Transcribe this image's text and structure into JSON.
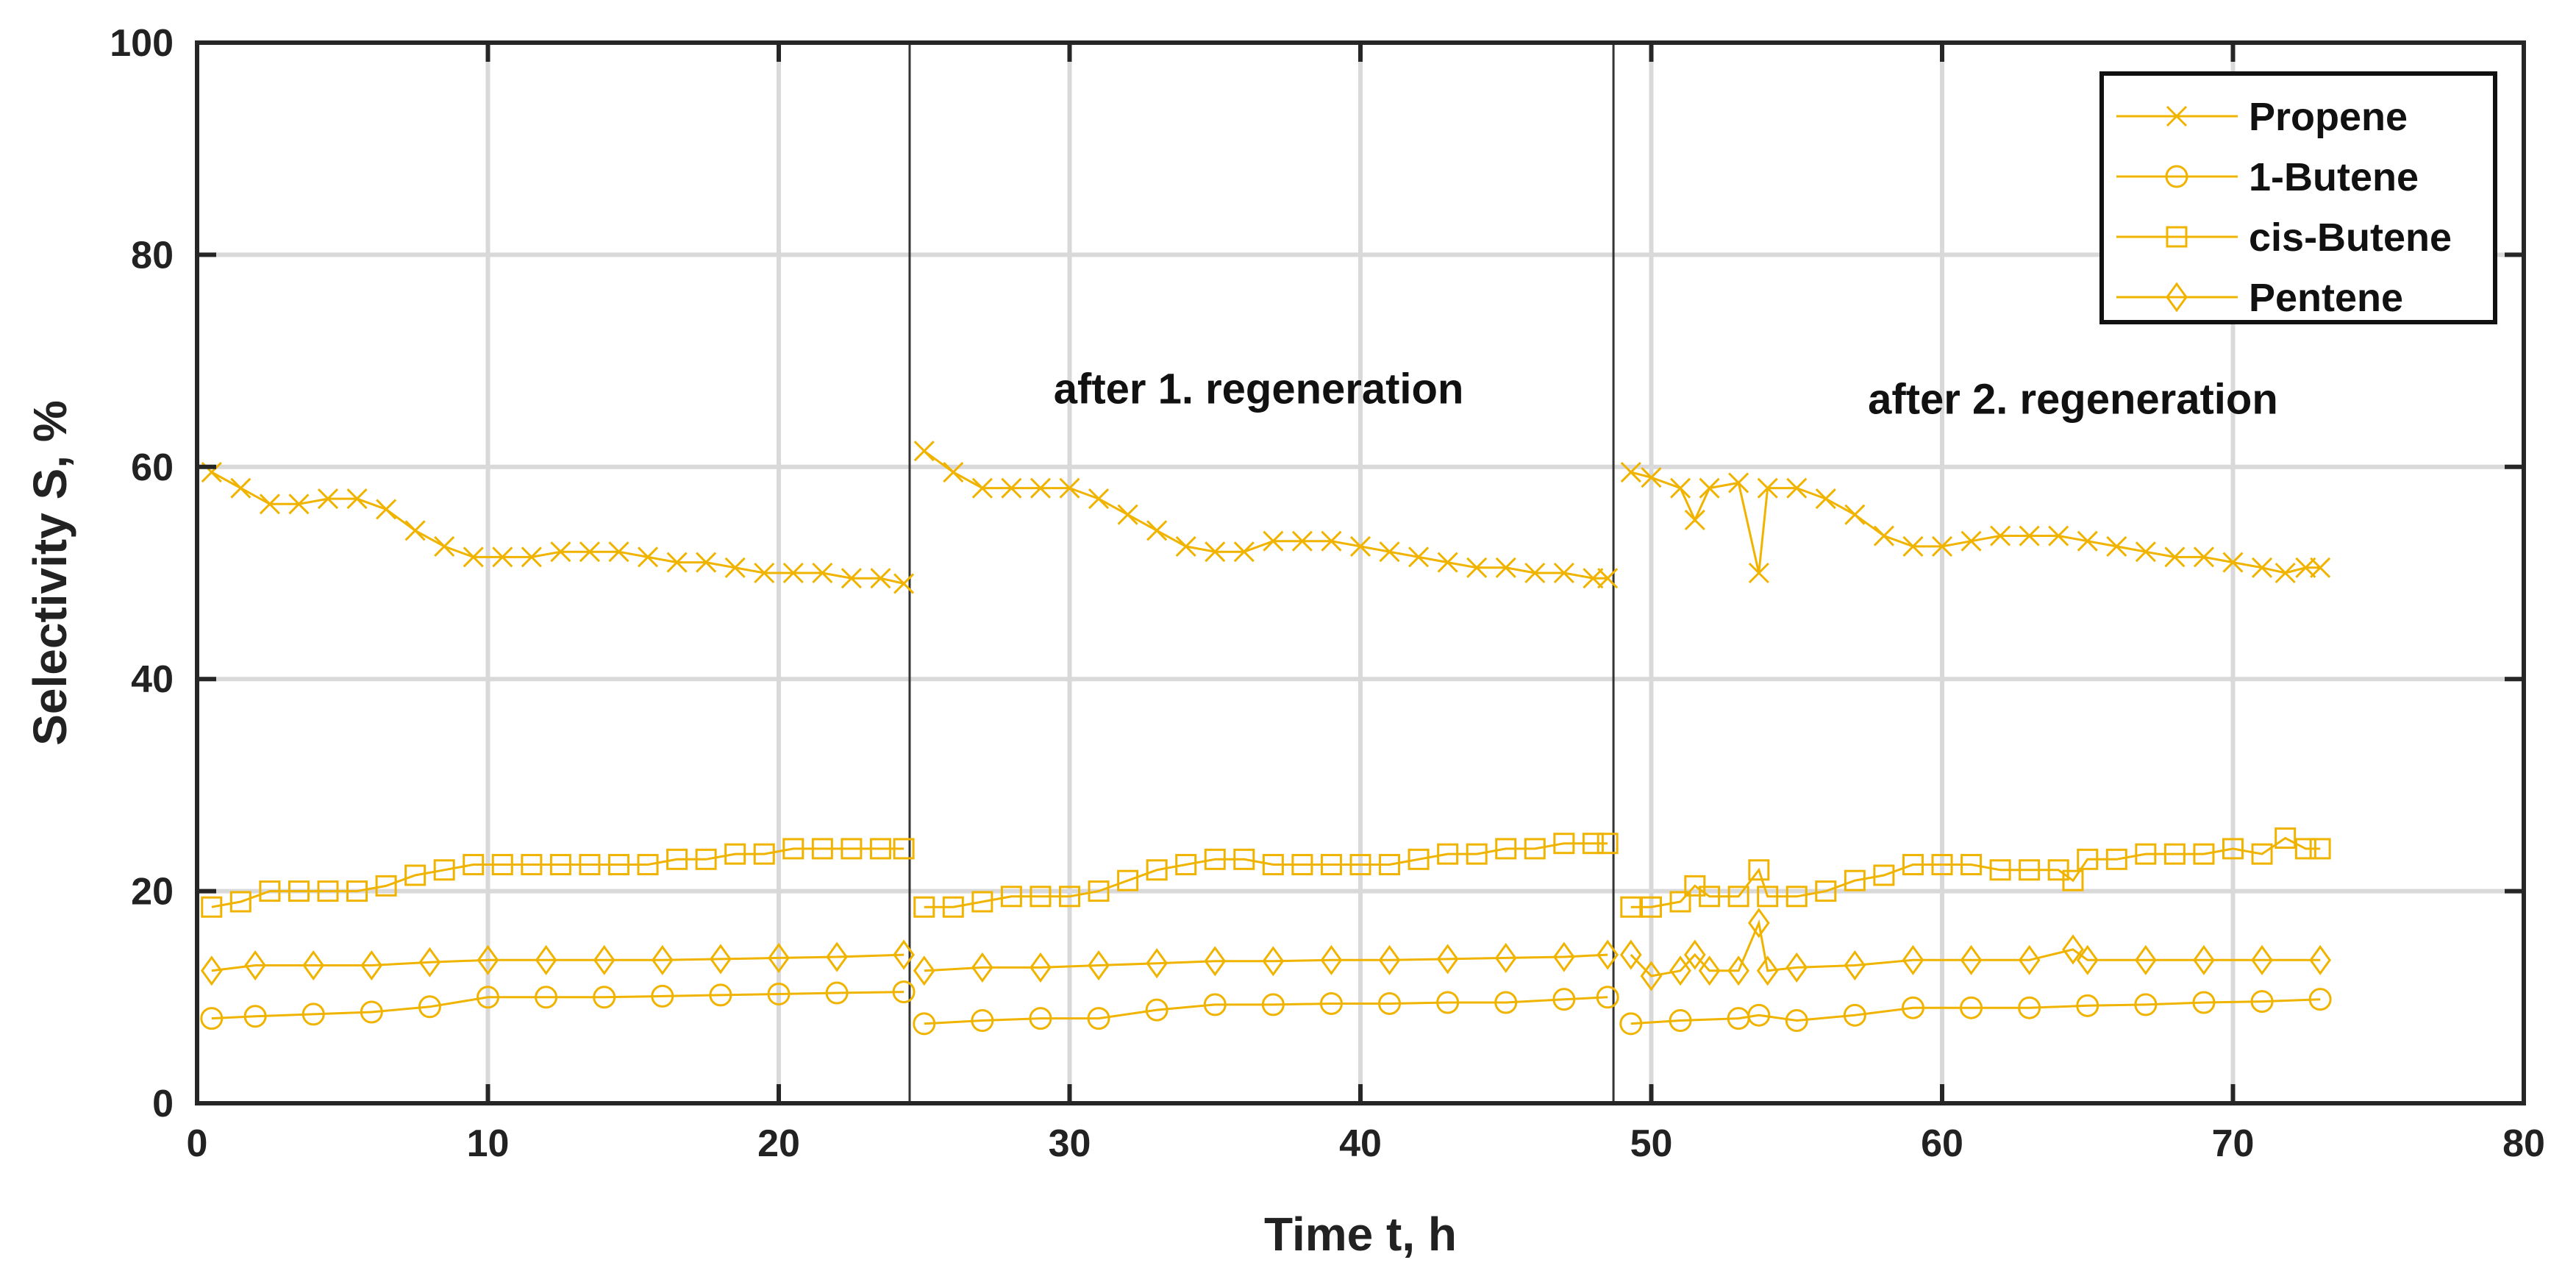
{
  "chart_data": {
    "type": "line",
    "title": "",
    "xlabel": "Time t, h",
    "ylabel": "Selectivity S, %",
    "xlim": [
      0,
      80
    ],
    "ylim": [
      0,
      100
    ],
    "xticks": [
      "0",
      "10",
      "20",
      "30",
      "40",
      "50",
      "60",
      "70",
      "80"
    ],
    "yticks": [
      "0",
      "20",
      "40",
      "60",
      "80",
      "100"
    ],
    "grid": true,
    "legend_position": "top-right",
    "separators_x": [
      24.5,
      48.7
    ],
    "annotations": [
      {
        "text": "after 1. regeneration",
        "x": 36.5,
        "y": 66
      },
      {
        "text": "after 2. regeneration",
        "x": 64.5,
        "y": 65
      }
    ],
    "series_color": "#F0B400",
    "series": [
      {
        "name": "Propene",
        "marker": "x",
        "segments": [
          [
            [
              0.5,
              59.5
            ],
            [
              1.5,
              58
            ],
            [
              2.5,
              56.5
            ],
            [
              3.5,
              56.5
            ],
            [
              4.5,
              57
            ],
            [
              5.5,
              57
            ],
            [
              6.5,
              56
            ],
            [
              7.5,
              54
            ],
            [
              8.5,
              52.5
            ],
            [
              9.5,
              51.5
            ],
            [
              10.5,
              51.5
            ],
            [
              11.5,
              51.5
            ],
            [
              12.5,
              52
            ],
            [
              13.5,
              52
            ],
            [
              14.5,
              52
            ],
            [
              15.5,
              51.5
            ],
            [
              16.5,
              51
            ],
            [
              17.5,
              51
            ],
            [
              18.5,
              50.5
            ],
            [
              19.5,
              50
            ],
            [
              20.5,
              50
            ],
            [
              21.5,
              50
            ],
            [
              22.5,
              49.5
            ],
            [
              23.5,
              49.5
            ],
            [
              24.3,
              49
            ]
          ],
          [
            [
              25,
              61.5
            ],
            [
              26,
              59.5
            ],
            [
              27,
              58
            ],
            [
              28,
              58
            ],
            [
              29,
              58
            ],
            [
              30,
              58
            ],
            [
              31,
              57
            ],
            [
              32,
              55.5
            ],
            [
              33,
              54
            ],
            [
              34,
              52.5
            ],
            [
              35,
              52
            ],
            [
              36,
              52
            ],
            [
              37,
              53
            ],
            [
              38,
              53
            ],
            [
              39,
              53
            ],
            [
              40,
              52.5
            ],
            [
              41,
              52
            ],
            [
              42,
              51.5
            ],
            [
              43,
              51
            ],
            [
              44,
              50.5
            ],
            [
              45,
              50.5
            ],
            [
              46,
              50
            ],
            [
              47,
              50
            ],
            [
              48,
              49.5
            ],
            [
              48.5,
              49.5
            ]
          ],
          [
            [
              49.3,
              59.5
            ],
            [
              50,
              59
            ],
            [
              51,
              58
            ],
            [
              51.5,
              55
            ],
            [
              52,
              58
            ],
            [
              53,
              58.5
            ],
            [
              53.7,
              50
            ],
            [
              54,
              58
            ],
            [
              55,
              58
            ],
            [
              56,
              57
            ],
            [
              57,
              55.5
            ],
            [
              58,
              53.5
            ],
            [
              59,
              52.5
            ],
            [
              60,
              52.5
            ],
            [
              61,
              53
            ],
            [
              62,
              53.5
            ],
            [
              63,
              53.5
            ],
            [
              64,
              53.5
            ],
            [
              65,
              53
            ],
            [
              66,
              52.5
            ],
            [
              67,
              52
            ],
            [
              68,
              51.5
            ],
            [
              69,
              51.5
            ],
            [
              70,
              51
            ],
            [
              71,
              50.5
            ],
            [
              71.8,
              50
            ],
            [
              72.5,
              50.5
            ],
            [
              73,
              50.5
            ]
          ]
        ]
      },
      {
        "name": "1-Butene",
        "marker": "o",
        "segments": [
          [
            [
              0.5,
              8
            ],
            [
              2,
              8.2
            ],
            [
              4,
              8.4
            ],
            [
              6,
              8.6
            ],
            [
              8,
              9.1
            ],
            [
              10,
              10
            ],
            [
              12,
              10
            ],
            [
              14,
              10
            ],
            [
              16,
              10.1
            ],
            [
              18,
              10.2
            ],
            [
              20,
              10.3
            ],
            [
              22,
              10.4
            ],
            [
              24.3,
              10.5
            ]
          ],
          [
            [
              25,
              7.5
            ],
            [
              27,
              7.8
            ],
            [
              29,
              8
            ],
            [
              31,
              8
            ],
            [
              33,
              8.8
            ],
            [
              35,
              9.3
            ],
            [
              37,
              9.3
            ],
            [
              39,
              9.4
            ],
            [
              41,
              9.4
            ],
            [
              43,
              9.5
            ],
            [
              45,
              9.5
            ],
            [
              47,
              9.8
            ],
            [
              48.5,
              10
            ]
          ],
          [
            [
              49.3,
              7.5
            ],
            [
              51,
              7.8
            ],
            [
              53,
              8
            ],
            [
              53.7,
              8.3
            ],
            [
              55,
              7.8
            ],
            [
              57,
              8.3
            ],
            [
              59,
              9
            ],
            [
              61,
              9
            ],
            [
              63,
              9
            ],
            [
              65,
              9.2
            ],
            [
              67,
              9.3
            ],
            [
              69,
              9.5
            ],
            [
              71,
              9.6
            ],
            [
              73,
              9.8
            ]
          ]
        ]
      },
      {
        "name": "cis-Butene",
        "marker": "s",
        "segments": [
          [
            [
              0.5,
              18.5
            ],
            [
              1.5,
              19
            ],
            [
              2.5,
              20
            ],
            [
              3.5,
              20
            ],
            [
              4.5,
              20
            ],
            [
              5.5,
              20
            ],
            [
              6.5,
              20.5
            ],
            [
              7.5,
              21.5
            ],
            [
              8.5,
              22
            ],
            [
              9.5,
              22.5
            ],
            [
              10.5,
              22.5
            ],
            [
              11.5,
              22.5
            ],
            [
              12.5,
              22.5
            ],
            [
              13.5,
              22.5
            ],
            [
              14.5,
              22.5
            ],
            [
              15.5,
              22.5
            ],
            [
              16.5,
              23
            ],
            [
              17.5,
              23
            ],
            [
              18.5,
              23.5
            ],
            [
              19.5,
              23.5
            ],
            [
              20.5,
              24
            ],
            [
              21.5,
              24
            ],
            [
              22.5,
              24
            ],
            [
              23.5,
              24
            ],
            [
              24.3,
              24
            ]
          ],
          [
            [
              25,
              18.5
            ],
            [
              26,
              18.5
            ],
            [
              27,
              19
            ],
            [
              28,
              19.5
            ],
            [
              29,
              19.5
            ],
            [
              30,
              19.5
            ],
            [
              31,
              20
            ],
            [
              32,
              21
            ],
            [
              33,
              22
            ],
            [
              34,
              22.5
            ],
            [
              35,
              23
            ],
            [
              36,
              23
            ],
            [
              37,
              22.5
            ],
            [
              38,
              22.5
            ],
            [
              39,
              22.5
            ],
            [
              40,
              22.5
            ],
            [
              41,
              22.5
            ],
            [
              42,
              23
            ],
            [
              43,
              23.5
            ],
            [
              44,
              23.5
            ],
            [
              45,
              24
            ],
            [
              46,
              24
            ],
            [
              47,
              24.5
            ],
            [
              48,
              24.5
            ],
            [
              48.5,
              24.5
            ]
          ],
          [
            [
              49.3,
              18.5
            ],
            [
              50,
              18.5
            ],
            [
              51,
              19
            ],
            [
              51.5,
              20.5
            ],
            [
              52,
              19.5
            ],
            [
              53,
              19.5
            ],
            [
              53.7,
              22
            ],
            [
              54,
              19.5
            ],
            [
              55,
              19.5
            ],
            [
              56,
              20
            ],
            [
              57,
              21
            ],
            [
              58,
              21.5
            ],
            [
              59,
              22.5
            ],
            [
              60,
              22.5
            ],
            [
              61,
              22.5
            ],
            [
              62,
              22
            ],
            [
              63,
              22
            ],
            [
              64,
              22
            ],
            [
              64.5,
              21
            ],
            [
              65,
              23
            ],
            [
              66,
              23
            ],
            [
              67,
              23.5
            ],
            [
              68,
              23.5
            ],
            [
              69,
              23.5
            ],
            [
              70,
              24
            ],
            [
              71,
              23.5
            ],
            [
              71.8,
              25
            ],
            [
              72.5,
              24
            ],
            [
              73,
              24
            ]
          ]
        ]
      },
      {
        "name": "Pentene",
        "marker": "d",
        "segments": [
          [
            [
              0.5,
              12.5
            ],
            [
              2,
              13
            ],
            [
              4,
              13
            ],
            [
              6,
              13
            ],
            [
              8,
              13.3
            ],
            [
              10,
              13.5
            ],
            [
              12,
              13.5
            ],
            [
              14,
              13.5
            ],
            [
              16,
              13.5
            ],
            [
              18,
              13.6
            ],
            [
              20,
              13.7
            ],
            [
              22,
              13.8
            ],
            [
              24.3,
              14
            ]
          ],
          [
            [
              25,
              12.5
            ],
            [
              27,
              12.8
            ],
            [
              29,
              12.8
            ],
            [
              31,
              13
            ],
            [
              33,
              13.2
            ],
            [
              35,
              13.4
            ],
            [
              37,
              13.4
            ],
            [
              39,
              13.5
            ],
            [
              41,
              13.5
            ],
            [
              43,
              13.6
            ],
            [
              45,
              13.7
            ],
            [
              47,
              13.8
            ],
            [
              48.5,
              14
            ]
          ],
          [
            [
              49.3,
              14
            ],
            [
              50,
              12
            ],
            [
              51,
              12.5
            ],
            [
              51.5,
              14
            ],
            [
              52,
              12.5
            ],
            [
              53,
              12.5
            ],
            [
              53.7,
              17
            ],
            [
              54,
              12.5
            ],
            [
              55,
              12.8
            ],
            [
              57,
              13
            ],
            [
              59,
              13.5
            ],
            [
              61,
              13.5
            ],
            [
              63,
              13.5
            ],
            [
              64.5,
              14.5
            ],
            [
              65,
              13.5
            ],
            [
              67,
              13.5
            ],
            [
              69,
              13.5
            ],
            [
              71,
              13.5
            ],
            [
              73,
              13.5
            ]
          ]
        ]
      }
    ]
  }
}
